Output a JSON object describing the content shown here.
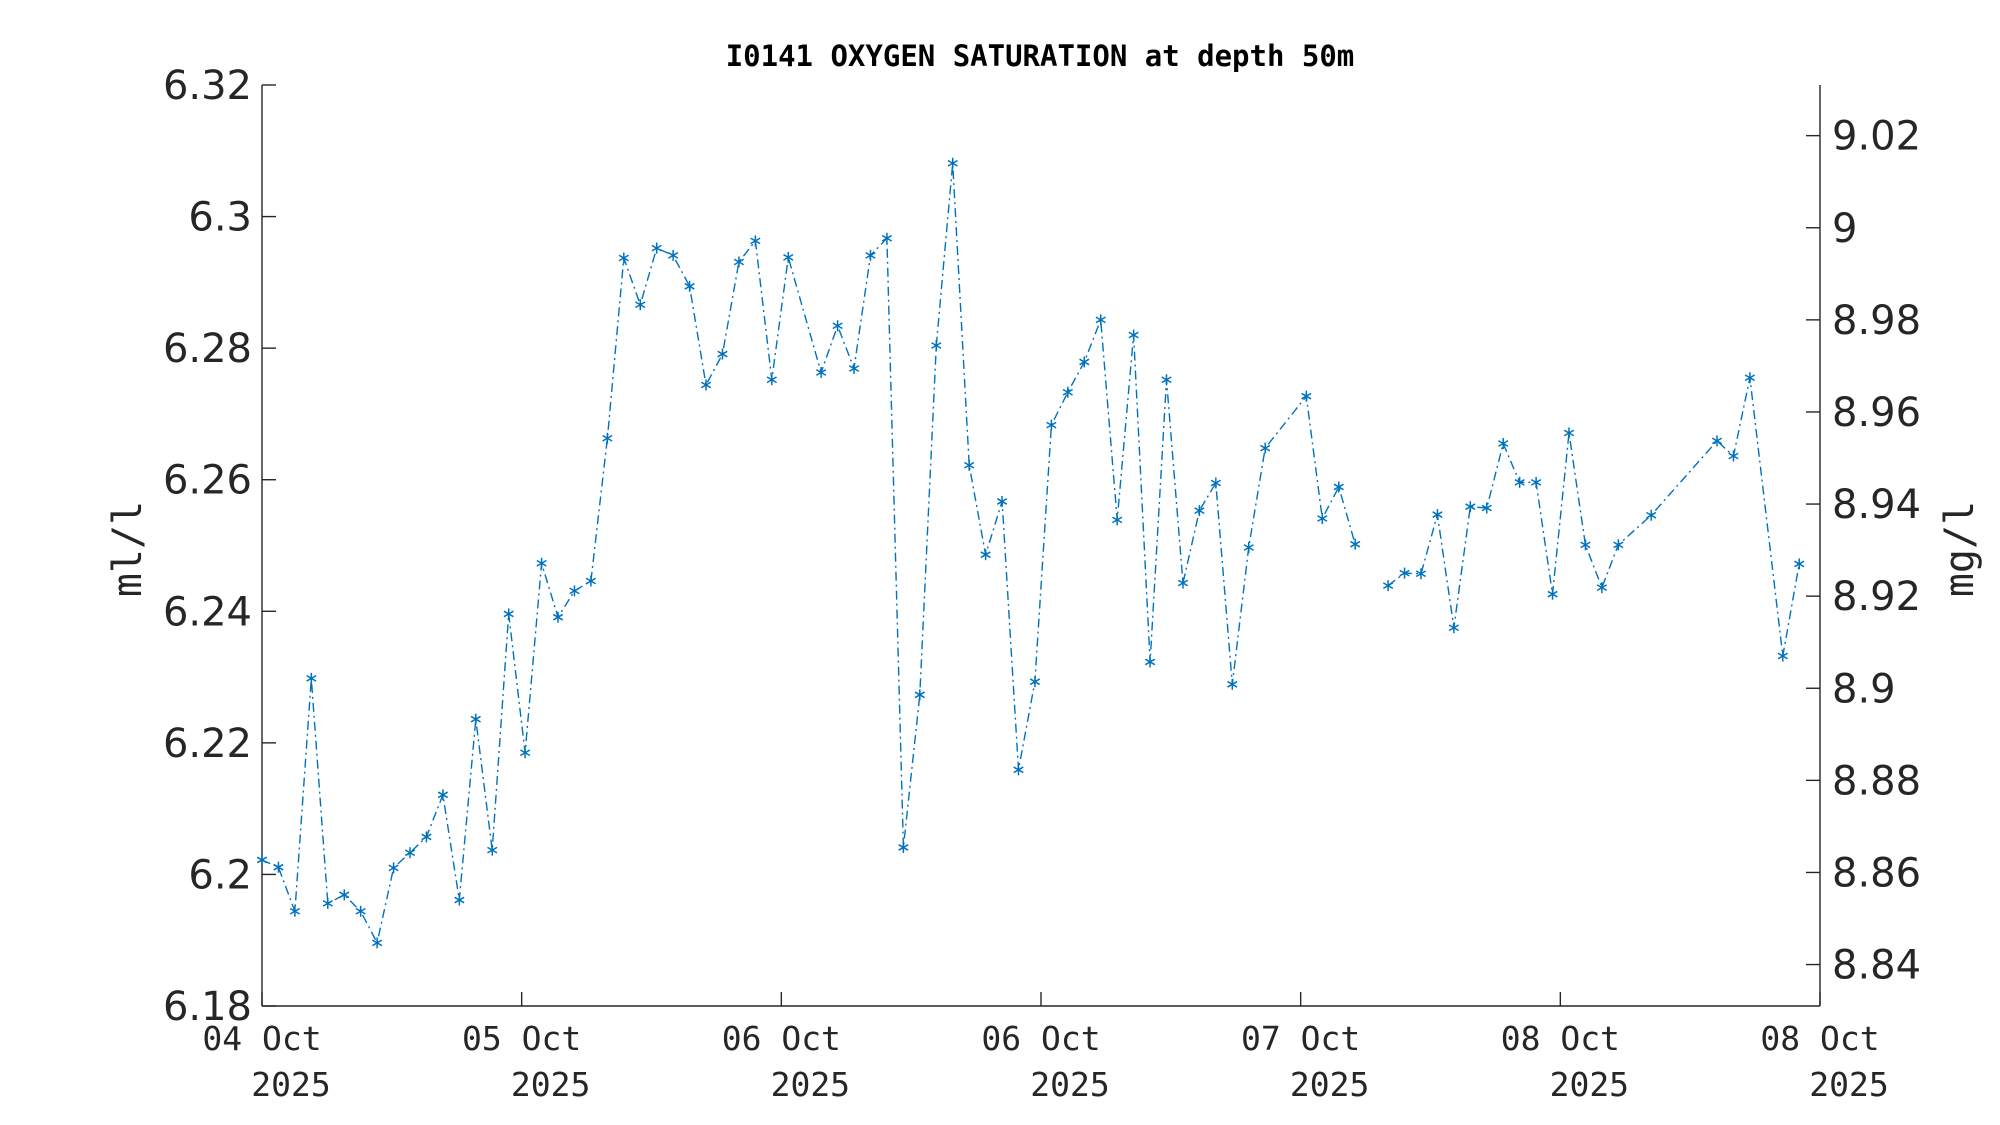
{
  "chart_data": {
    "type": "line",
    "title": "I0141 OXYGEN SATURATION at depth 50m",
    "ylabel": "ml/l",
    "y2label": "mg/l",
    "ylim": [
      6.18,
      6.32
    ],
    "y2lim": [
      8.831,
      9.031
    ],
    "yticks": [
      "6.18",
      "6.2",
      "6.22",
      "6.24",
      "6.26",
      "6.28",
      "6.3",
      "6.32"
    ],
    "y2ticks": [
      "8.84",
      "8.86",
      "8.88",
      "8.9",
      "8.92",
      "8.94",
      "8.96",
      "8.98",
      "9",
      "9.02"
    ],
    "xticks": [
      {
        "line1": "04 Oct",
        "line2": "2025"
      },
      {
        "line1": "05 Oct",
        "line2": "2025"
      },
      {
        "line1": "06 Oct",
        "line2": "2025"
      },
      {
        "line1": "06 Oct",
        "line2": "2025"
      },
      {
        "line1": "07 Oct",
        "line2": "2025"
      },
      {
        "line1": "08 Oct",
        "line2": "2025"
      },
      {
        "line1": "08 Oct",
        "line2": "2025"
      }
    ],
    "grid": false,
    "line_style": "dash-dot",
    "marker": "asterisk",
    "color": "#0072bd",
    "series": [
      {
        "segments": [
          [
            [
              0.0,
              6.2022
            ],
            [
              0.0633,
              6.2011
            ],
            [
              0.1267,
              6.1944
            ],
            [
              0.19,
              6.2298
            ],
            [
              0.2533,
              6.1956
            ],
            [
              0.3167,
              6.1969
            ],
            [
              0.38,
              6.1944
            ],
            [
              0.4433,
              6.1896
            ],
            [
              0.5067,
              6.201
            ],
            [
              0.57,
              6.2033
            ],
            [
              0.6333,
              6.2057
            ],
            [
              0.6967,
              6.2121
            ],
            [
              0.76,
              6.1961
            ],
            [
              0.8233,
              6.2236
            ],
            [
              0.8867,
              6.2037
            ],
            [
              0.95,
              6.2396
            ],
            [
              1.0133,
              6.2185
            ],
            [
              1.0767,
              6.2473
            ],
            [
              1.14,
              6.2391
            ],
            [
              1.2033,
              6.2431
            ],
            [
              1.2667,
              6.2446
            ],
            [
              1.33,
              6.2663
            ],
            [
              1.3933,
              6.2937
            ],
            [
              1.4567,
              6.2866
            ],
            [
              1.52,
              6.2952
            ],
            [
              1.5833,
              6.2941
            ],
            [
              1.6467,
              6.2894
            ],
            [
              1.71,
              6.2744
            ],
            [
              1.7733,
              6.2791
            ],
            [
              1.8367,
              6.2931
            ],
            [
              1.9,
              6.2963
            ],
            [
              1.9633,
              6.2752
            ],
            [
              2.0267,
              6.2938
            ],
            [
              2.1533,
              6.2763
            ],
            [
              2.2167,
              6.2834
            ],
            [
              2.28,
              6.2769
            ],
            [
              2.3433,
              6.2941
            ],
            [
              2.4067,
              6.2967
            ],
            [
              2.47,
              6.2041
            ],
            [
              2.5333,
              6.2273
            ],
            [
              2.5967,
              6.2804
            ],
            [
              2.66,
              6.3081
            ],
            [
              2.7233,
              6.2622
            ],
            [
              2.7867,
              6.2486
            ],
            [
              2.85,
              6.2567
            ],
            [
              2.9133,
              6.2159
            ],
            [
              2.9767,
              6.2293
            ],
            [
              3.04,
              6.2683
            ],
            [
              3.1033,
              6.2733
            ],
            [
              3.1667,
              6.2779
            ],
            [
              3.23,
              6.2843
            ],
            [
              3.2933,
              6.2539
            ],
            [
              3.3567,
              6.282
            ],
            [
              3.42,
              6.2323
            ],
            [
              3.4833,
              6.2752
            ],
            [
              3.5467,
              6.2443
            ],
            [
              3.61,
              6.2553
            ],
            [
              3.6733,
              6.2595
            ],
            [
              3.7367,
              6.2289
            ],
            [
              3.8,
              6.2497
            ],
            [
              3.8633,
              6.2648
            ],
            [
              4.0217,
              6.2727
            ],
            [
              4.0833,
              6.2541
            ],
            [
              4.1467,
              6.2589
            ],
            [
              4.21,
              6.2502
            ]
          ],
          [
            [
              4.3367,
              6.2439
            ],
            [
              4.4,
              6.2458
            ],
            [
              4.4633,
              6.2457
            ],
            [
              4.5267,
              6.2547
            ],
            [
              4.59,
              6.2375
            ],
            [
              4.6533,
              6.2559
            ],
            [
              4.7167,
              6.2557
            ],
            [
              4.78,
              6.2655
            ],
            [
              4.8433,
              6.2596
            ],
            [
              4.9067,
              6.2596
            ],
            [
              4.97,
              6.2426
            ],
            [
              5.0333,
              6.2671
            ],
            [
              5.0967,
              6.2501
            ],
            [
              5.16,
              6.2436
            ],
            [
              5.2233,
              6.2501
            ],
            [
              5.35,
              6.2546
            ],
            [
              5.6033,
              6.2659
            ],
            [
              5.6667,
              6.2636
            ],
            [
              5.73,
              6.2755
            ],
            [
              5.8567,
              6.2332
            ],
            [
              5.92,
              6.2472
            ]
          ]
        ]
      }
    ]
  }
}
